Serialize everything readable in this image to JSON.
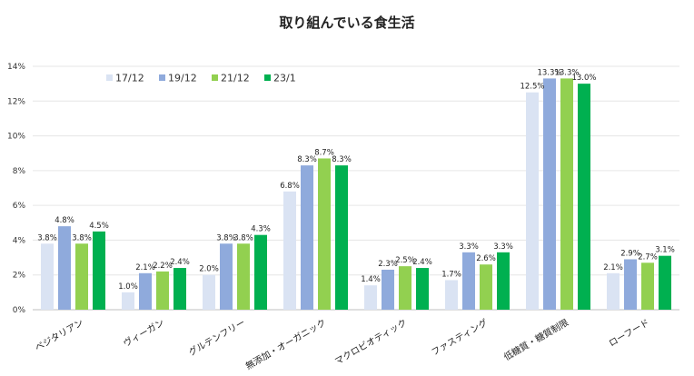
{
  "chart_data": {
    "type": "bar",
    "title": "取り組んでいる食生活",
    "categories": [
      "ベジタリアン",
      "ヴィーガン",
      "グルテンフリー",
      "無添加・オーガニック",
      "マクロビオティック",
      "ファスティング",
      "低糖質・糖質制限",
      "ローフード"
    ],
    "series": [
      {
        "name": "17/12",
        "color": "#dae3f3",
        "values": [
          3.8,
          1.0,
          2.0,
          6.8,
          1.4,
          1.7,
          12.5,
          2.1
        ]
      },
      {
        "name": "19/12",
        "color": "#8faadc",
        "values": [
          4.8,
          2.1,
          3.8,
          8.3,
          2.3,
          3.3,
          13.3,
          2.9
        ]
      },
      {
        "name": "21/12",
        "color": "#92d050",
        "values": [
          3.8,
          2.2,
          3.8,
          8.7,
          2.5,
          2.6,
          13.3,
          2.7
        ]
      },
      {
        "name": "23/1",
        "color": "#00b050",
        "values": [
          4.5,
          2.4,
          4.3,
          8.3,
          2.4,
          3.3,
          13.0,
          3.1
        ]
      }
    ],
    "yticks": [
      "0%",
      "2%",
      "4%",
      "6%",
      "8%",
      "10%",
      "12%",
      "14%"
    ],
    "ylim": [
      0,
      14
    ],
    "unit": "%",
    "grid": true,
    "legend": "top-left"
  }
}
